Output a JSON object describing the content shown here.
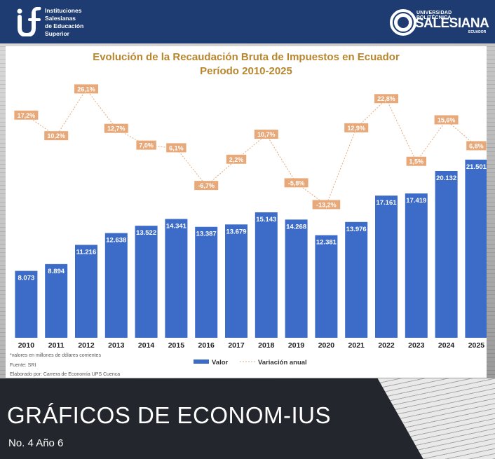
{
  "header": {
    "institution_lines": [
      "Instituciones",
      "Salesianas",
      "de Educación",
      "Superior"
    ],
    "university_small": "UNIVERSIDAD POLITÉCNICA",
    "university_big": "SALESIANA",
    "university_country": "ECUADOR"
  },
  "chart_data": {
    "type": "bar",
    "title": "Evolución de la Recaudación Bruta de Impuestos en Ecuador",
    "subtitle": "Período 2010-2025",
    "categories": [
      "2010",
      "2011",
      "2012",
      "2013",
      "2014",
      "2015",
      "2016",
      "2017",
      "2018",
      "2019",
      "2020",
      "2021",
      "2022",
      "2023",
      "2024",
      "2025"
    ],
    "series": [
      {
        "name": "Valor",
        "type": "bar",
        "values": [
          8073,
          8894,
          11216,
          12638,
          13522,
          14341,
          13387,
          13679,
          15143,
          14268,
          12381,
          13976,
          17161,
          17419,
          20132,
          21501
        ],
        "labels": [
          "8.073",
          "8.894",
          "11.216",
          "12.638",
          "13.522",
          "14.341",
          "13.387",
          "13.679",
          "15.143",
          "14.268",
          "12.381",
          "13.976",
          "17.161",
          "17.419",
          "20.132",
          "21.501"
        ],
        "color": "#3d6cc8"
      },
      {
        "name": "Variación anual",
        "type": "line",
        "values": [
          17.2,
          10.2,
          26.1,
          12.7,
          7.0,
          6.1,
          -6.7,
          2.2,
          10.7,
          -5.8,
          -13.2,
          12.9,
          22.8,
          1.5,
          15.6,
          6.8
        ],
        "labels": [
          "17,2%",
          "10,2%",
          "26,1%",
          "12,7%",
          "7,0%",
          "6,1%",
          "-6,7%",
          "2,2%",
          "10,7%",
          "-5,8%",
          "-13,2%",
          "12,9%",
          "22,8%",
          "1,5%",
          "15,6%",
          "6,8%"
        ],
        "color": "#e8a97a"
      }
    ],
    "ylim": [
      0,
      22500
    ],
    "y2lim": [
      -20,
      30
    ],
    "legend_position": "bottom",
    "notes": [
      "*valores en millones de dólares corrientes",
      "Fuente: SRI",
      "Elaborado por: Carrera de Economía UPS Cuenca"
    ]
  },
  "footer": {
    "publication": "GRÁFICOS DE ECONOM-IUS",
    "issue": "No. 4 Año 6"
  },
  "colors": {
    "header_bg": "#1e3c72",
    "bar": "#3d6cc8",
    "line": "#e8a97a",
    "title": "#b8862e"
  }
}
